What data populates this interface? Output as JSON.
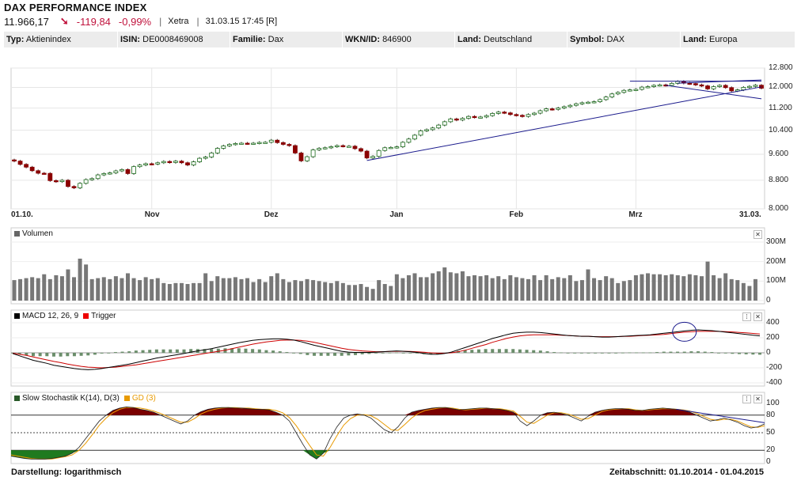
{
  "header": {
    "title": "DAX PERFORMANCE INDEX",
    "last": "11.966,17",
    "arrow": "➘",
    "change": "-119,84",
    "change_pct": "-0,99%",
    "exchange": "Xetra",
    "datetime": "31.03.15 17:45 [R]"
  },
  "info": [
    {
      "label": "Typ:",
      "value": "Aktienindex"
    },
    {
      "label": "ISIN:",
      "value": "DE0008469008"
    },
    {
      "label": "Familie:",
      "value": "Dax"
    },
    {
      "label": "WKN/ID:",
      "value": "846900"
    },
    {
      "label": "Land:",
      "value": "Deutschland"
    },
    {
      "label": "Symbol:",
      "value": "DAX"
    },
    {
      "label": "Land:",
      "value": "Europa"
    }
  ],
  "footer": {
    "display": "Darstellung: logarithmisch",
    "period": "Zeitabschnitt: 01.10.2014 - 01.04.2015"
  },
  "colors": {
    "up": "#ffffff",
    "down": "#8b0000",
    "upBorder": "#1a6b1a",
    "trend": "#1a1a8c",
    "macd": "#000000",
    "trigger": "#cc0000",
    "hist": "#6b8e6b",
    "gd": "#e89a00",
    "kfill": "#7a0000",
    "oversold": "#1f7a1f"
  },
  "chart_data": [
    {
      "type": "candlestick",
      "name": "price",
      "scale": "log",
      "ylim": [
        8000,
        12800
      ],
      "yticks": [
        "12.800",
        "12.000",
        "11.200",
        "10.400",
        "9.600",
        "8.800",
        "8.000"
      ],
      "ytick_values": [
        12800,
        12000,
        11200,
        10400,
        9600,
        8800,
        8000
      ],
      "xticks": [
        "01.10.",
        "Nov",
        "Dez",
        "Jan",
        "Feb",
        "Mrz",
        "31.03."
      ],
      "xtick_index": [
        0,
        23,
        43,
        64,
        84,
        104,
        125
      ],
      "close": [
        9382,
        9280,
        9195,
        9086,
        9010,
        9005,
        8790,
        8760,
        8800,
        8620,
        8580,
        8710,
        8820,
        8850,
        8960,
        9000,
        9020,
        9080,
        9120,
        9000,
        9210,
        9260,
        9300,
        9290,
        9330,
        9370,
        9340,
        9380,
        9330,
        9260,
        9360,
        9470,
        9510,
        9640,
        9790,
        9870,
        9920,
        9950,
        9960,
        9945,
        9960,
        9985,
        9990,
        10060,
        9980,
        9920,
        9880,
        9640,
        9390,
        9520,
        9740,
        9790,
        9810,
        9845,
        9880,
        9860,
        9860,
        9780,
        9700,
        9480,
        9530,
        9720,
        9810,
        9820,
        9840,
        9990,
        10100,
        10230,
        10380,
        10420,
        10480,
        10580,
        10700,
        10800,
        10760,
        10820,
        10890,
        10860,
        10870,
        10920,
        11000,
        11050,
        11020,
        10960,
        10930,
        10890,
        10960,
        11010,
        11100,
        11170,
        11150,
        11200,
        11250,
        11300,
        11360,
        11400,
        11420,
        11440,
        11520,
        11620,
        11740,
        11800,
        11880,
        11900,
        11920,
        12010,
        12030,
        12080,
        12100,
        12080,
        12160,
        12240,
        12170,
        12150,
        12100,
        12060,
        11940,
        12030,
        12080,
        11990,
        11860,
        11900,
        12000,
        12040,
        12086,
        11966
      ],
      "series": [
        {
          "name": "Volumen",
          "type": "bar",
          "ylim": [
            0,
            300
          ],
          "unit": "M",
          "yticks": [
            "300M",
            "200M",
            "100M",
            "0"
          ],
          "values": [
            105,
            110,
            115,
            120,
            115,
            135,
            110,
            130,
            125,
            160,
            120,
            215,
            185,
            110,
            115,
            120,
            110,
            125,
            115,
            140,
            115,
            105,
            120,
            110,
            115,
            90,
            85,
            90,
            90,
            85,
            90,
            90,
            140,
            100,
            125,
            115,
            115,
            120,
            110,
            115,
            95,
            110,
            95,
            125,
            140,
            110,
            95,
            105,
            100,
            110,
            105,
            100,
            95,
            90,
            100,
            90,
            80,
            80,
            85,
            70,
            60,
            105,
            85,
            75,
            135,
            115,
            130,
            140,
            120,
            120,
            140,
            150,
            170,
            145,
            140,
            150,
            125,
            130,
            125,
            130,
            115,
            125,
            110,
            130,
            120,
            115,
            110,
            130,
            105,
            130,
            110,
            120,
            115,
            130,
            100,
            105,
            160,
            115,
            105,
            125,
            115,
            90,
            100,
            105,
            130,
            135,
            140,
            135,
            135,
            130,
            135,
            130,
            125,
            135,
            130,
            125,
            200,
            130,
            115,
            140,
            110,
            105,
            90,
            75,
            110
          ]
        },
        {
          "name": "MACD 12, 26, 9",
          "type": "line",
          "ylim": [
            -400,
            400
          ],
          "yticks": [
            "400",
            "200",
            "0",
            "-200",
            "-400"
          ],
          "values": [
            -10,
            -40,
            -70,
            -100,
            -120,
            -140,
            -165,
            -180,
            -195,
            -210,
            -220,
            -225,
            -220,
            -210,
            -195,
            -180,
            -165,
            -150,
            -130,
            -110,
            -90,
            -70,
            -55,
            -40,
            -25,
            -10,
            10,
            25,
            40,
            55,
            75,
            95,
            115,
            135,
            150,
            165,
            175,
            180,
            185,
            185,
            180,
            170,
            150,
            125,
            100,
            80,
            60,
            40,
            20,
            10,
            5,
            5,
            5,
            10,
            15,
            20,
            25,
            20,
            15,
            5,
            -10,
            -20,
            -20,
            -10,
            10,
            40,
            70,
            100,
            130,
            160,
            190,
            215,
            240,
            260,
            270,
            275,
            275,
            270,
            260,
            250,
            240,
            230,
            225,
            220,
            220,
            215,
            210,
            210,
            215,
            220,
            225,
            230,
            235,
            240,
            250,
            260,
            270,
            280,
            290,
            300,
            305,
            300,
            295,
            285,
            275,
            265,
            255,
            245,
            235,
            225
          ]
        },
        {
          "name": "Trigger",
          "type": "line",
          "values": [
            -5,
            -20,
            -35,
            -55,
            -75,
            -95,
            -115,
            -130,
            -150,
            -165,
            -180,
            -190,
            -195,
            -200,
            -195,
            -190,
            -180,
            -170,
            -160,
            -145,
            -130,
            -115,
            -100,
            -85,
            -70,
            -55,
            -40,
            -25,
            -10,
            5,
            20,
            35,
            55,
            75,
            95,
            115,
            130,
            145,
            155,
            165,
            170,
            170,
            165,
            155,
            140,
            120,
            100,
            80,
            60,
            45,
            35,
            25,
            20,
            15,
            15,
            18,
            20,
            20,
            18,
            14,
            8,
            0,
            -5,
            -5,
            0,
            15,
            35,
            60,
            85,
            110,
            140,
            165,
            190,
            210,
            225,
            235,
            240,
            240,
            240,
            240,
            235,
            230,
            225,
            220,
            220,
            215,
            215,
            215,
            215,
            218,
            220,
            225,
            230,
            235,
            240,
            245,
            255,
            265,
            275,
            280,
            285,
            285,
            285,
            285,
            282,
            278,
            272,
            265,
            258,
            250
          ]
        },
        {
          "name": "Slow Stochastik K(14), D(3)",
          "type": "line",
          "ylim": [
            0,
            100
          ],
          "yticks": [
            "100",
            "80",
            "50",
            "20",
            "0"
          ],
          "values": [
            10,
            8,
            6,
            5,
            5,
            5,
            6,
            8,
            10,
            15,
            25,
            40,
            55,
            70,
            80,
            88,
            92,
            94,
            93,
            90,
            88,
            85,
            80,
            75,
            70,
            65,
            70,
            80,
            86,
            90,
            92,
            93,
            93,
            92,
            92,
            91,
            90,
            90,
            89,
            85,
            80,
            70,
            50,
            30,
            12,
            5,
            15,
            40,
            60,
            75,
            80,
            82,
            80,
            75,
            65,
            55,
            50,
            60,
            75,
            85,
            88,
            90,
            92,
            93,
            93,
            91,
            89,
            90,
            91,
            92,
            92,
            91,
            90,
            88,
            85,
            70,
            62,
            70,
            80,
            84,
            85,
            83,
            80,
            75,
            70,
            78,
            85,
            88,
            90,
            91,
            91,
            90,
            88,
            88,
            90,
            91,
            92,
            91,
            90,
            88,
            85,
            80,
            75,
            70,
            72,
            75,
            72,
            68,
            62,
            58,
            60,
            65
          ]
        },
        {
          "name": "GD (3)",
          "type": "line",
          "values": [
            12,
            10,
            8,
            6,
            5,
            5,
            5,
            7,
            9,
            12,
            20,
            32,
            47,
            63,
            75,
            84,
            90,
            93,
            93,
            92,
            90,
            87,
            83,
            78,
            73,
            68,
            68,
            74,
            82,
            87,
            90,
            92,
            93,
            93,
            92,
            92,
            91,
            90,
            90,
            88,
            84,
            76,
            62,
            45,
            28,
            12,
            10,
            25,
            45,
            63,
            74,
            80,
            81,
            79,
            73,
            64,
            55,
            54,
            64,
            75,
            83,
            88,
            90,
            92,
            93,
            92,
            90,
            89,
            90,
            91,
            92,
            91,
            91,
            89,
            87,
            78,
            68,
            66,
            73,
            80,
            84,
            84,
            82,
            78,
            73,
            74,
            80,
            86,
            89,
            90,
            91,
            91,
            89,
            88,
            89,
            90,
            91,
            91,
            90,
            89,
            87,
            83,
            78,
            73,
            71,
            73,
            73,
            70,
            65,
            60,
            59,
            62
          ]
        }
      ],
      "stoch_lines": [
        80,
        50,
        20
      ]
    }
  ]
}
